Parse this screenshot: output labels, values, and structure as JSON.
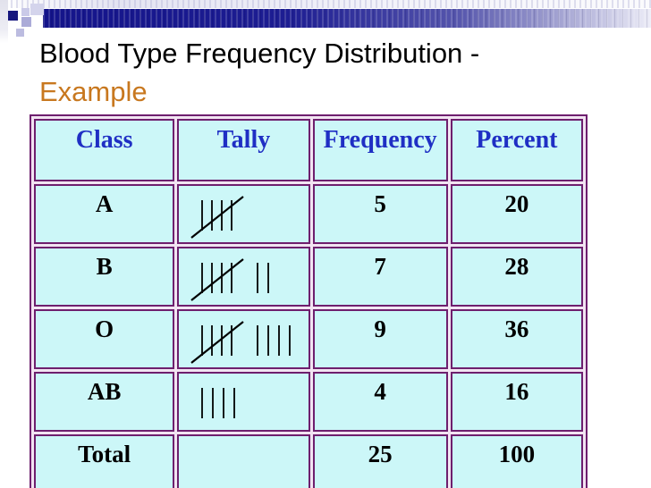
{
  "slide": {
    "title_line1": "Blood Type Frequency Distribution -",
    "title_line2": "Example",
    "accent_color": "#c8781f"
  },
  "table": {
    "headers": [
      "Class",
      "Tally",
      "Frequency",
      "Percent"
    ],
    "rows": [
      {
        "class": "A",
        "tally_count": 5,
        "frequency": "5",
        "percent": "20"
      },
      {
        "class": "B",
        "tally_count": 7,
        "frequency": "7",
        "percent": "28"
      },
      {
        "class": "O",
        "tally_count": 9,
        "frequency": "9",
        "percent": "36"
      },
      {
        "class": "AB",
        "tally_count": 4,
        "frequency": "4",
        "percent": "16"
      },
      {
        "class": "Total",
        "tally_count": 0,
        "frequency": "25",
        "percent": "100"
      }
    ],
    "colors": {
      "cell_background": "#ccf7f8",
      "border": "#6e1f6e",
      "header_text": "#1f2fc4",
      "body_text": "#000000"
    }
  }
}
